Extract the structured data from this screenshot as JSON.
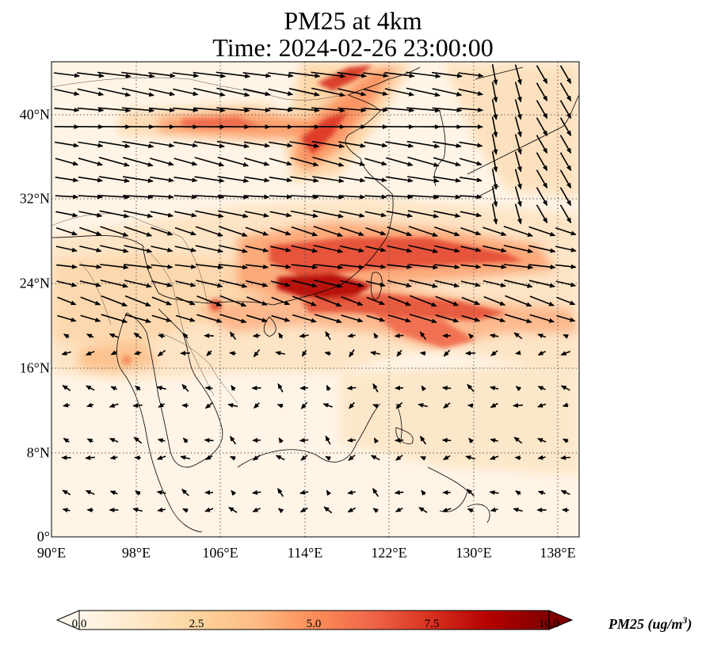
{
  "title": {
    "line1": "PM25 at 4km",
    "line2": "Time: 2024-02-26 23:00:00"
  },
  "map": {
    "lon_range": [
      90,
      140
    ],
    "lat_range": [
      0,
      45
    ],
    "x_ticks": [
      "90°E",
      "98°E",
      "106°E",
      "114°E",
      "122°E",
      "130°E",
      "138°E"
    ],
    "y_ticks": [
      "0°",
      "8°N",
      "16°N",
      "24°N",
      "32°N",
      "40°N"
    ],
    "gridlines": true,
    "vectors": "wind arrows overlay",
    "high_pm25_bands": [
      {
        "region": "East China Sea / Taiwan Strait band",
        "approx_lon": [
          112,
          134
        ],
        "approx_lat": [
          22,
          30
        ]
      },
      {
        "region": "South China coast band",
        "approx_lon": [
          106,
          130
        ],
        "approx_lat": [
          17,
          24
        ]
      },
      {
        "region": "North China plume",
        "approx_lon": [
          114,
          120
        ],
        "approx_lat": [
          35,
          45
        ]
      }
    ]
  },
  "colorbar": {
    "label": "PM25 (ug/m",
    "label_exp": "3",
    "label_close": ")",
    "ticks": [
      "0.0",
      "2.5",
      "5.0",
      "7.5",
      "10.0"
    ],
    "range": [
      0,
      10
    ],
    "colormap": "OrRd",
    "colors": [
      "#fff7ec",
      "#fee8c8",
      "#fdd49e",
      "#fdbb84",
      "#fc8d59",
      "#ef6548",
      "#d7301f",
      "#b30000",
      "#7f0000"
    ]
  }
}
